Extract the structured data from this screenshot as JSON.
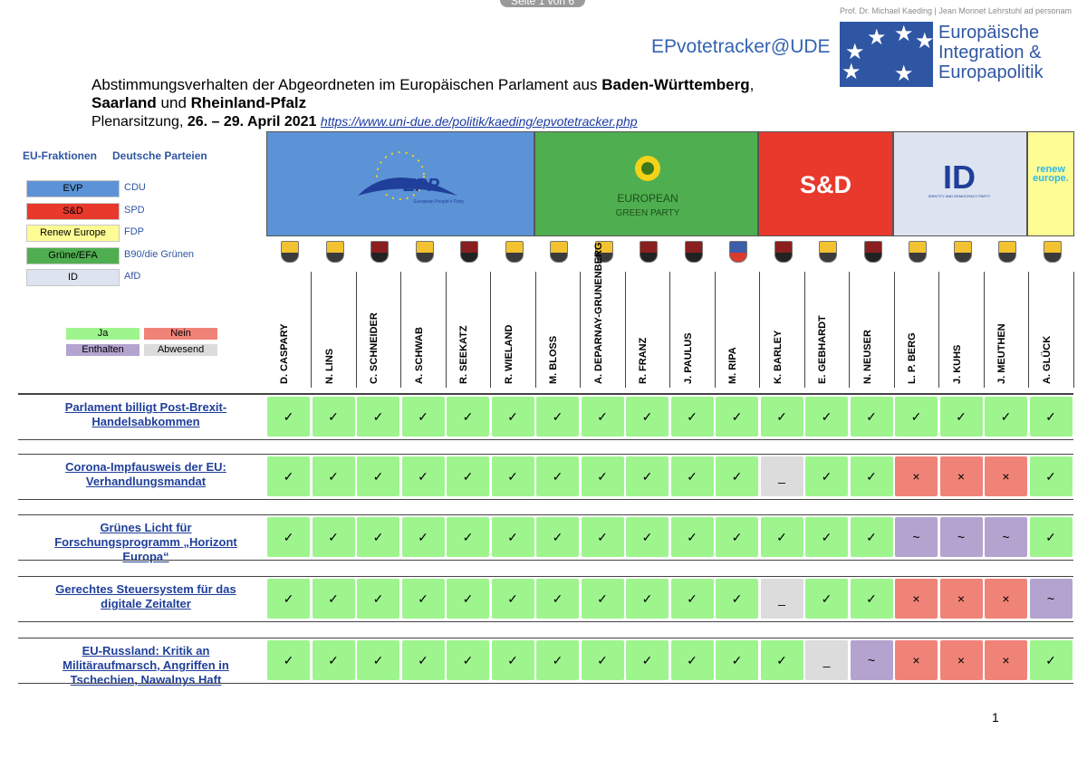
{
  "viewer": {
    "page_indicator": "Seite 1 von 6"
  },
  "header": {
    "brand": "EPvotetracker@UDE",
    "credit": "Prof. Dr. Michael Kaeding | Jean Monnet Lehrstuhl ad personam",
    "logo_lines": [
      "Europäische",
      "Integration &",
      "Europapolitik"
    ],
    "title_part1": "Abstimmungsverhalten der Abgeordneten im Europäischen Parlament aus ",
    "title_bold1": "Baden-Württemberg",
    "title_part2": ",",
    "title_bold2": "Saarland",
    "title_part3": " und ",
    "title_bold3": "Rheinland-Pfalz",
    "session_label": "Plenarsitzung, ",
    "session_dates": "26. – 29. April 2021",
    "url": "https://www.uni-due.de/politik/kaeding/epvotetracker.php"
  },
  "legend": {
    "head_groups": "EU-Fraktionen",
    "head_parties": "Deutsche Parteien",
    "groups": [
      {
        "group": "EVP",
        "party": "CDU",
        "color": "#5b93d6"
      },
      {
        "group": "S&D",
        "party": "SPD",
        "color": "#e8392c"
      },
      {
        "group": "Renew Europe",
        "party": "FDP",
        "color": "#fefc94"
      },
      {
        "group": "Grüne/EFA",
        "party": "B90/die Grünen",
        "color": "#4fae4f"
      },
      {
        "group": "ID",
        "party": "AfD",
        "color": "#dde3f0"
      }
    ],
    "vote_keys": {
      "yes": "Ja",
      "no": "Nein",
      "abstain": "Enthalten",
      "absent": "Abwesend"
    }
  },
  "party_headers": {
    "epp_text": "EPP",
    "epp_sub": "European People's Party",
    "greens_line1": "EUROPEAN",
    "greens_line2": "GREEN PARTY",
    "sd_text": "S&D",
    "id_text": "ID",
    "id_sub": "IDENTITY AND DEMOCRACY PARTY",
    "renew_text": "renew europe."
  },
  "meps": [
    {
      "name": "D. CASPARY",
      "region": "BW"
    },
    {
      "name": "N. LINS",
      "region": "BW"
    },
    {
      "name": "C. SCHNEIDER",
      "region": "RP"
    },
    {
      "name": "A. SCHWAB",
      "region": "BW"
    },
    {
      "name": "R. SEEKATZ",
      "region": "RP"
    },
    {
      "name": "R. WIELAND",
      "region": "BW"
    },
    {
      "name": "M. BLOSS",
      "region": "BW"
    },
    {
      "name": "A. DEPARNAY-GRUNENBERG",
      "region": "BW"
    },
    {
      "name": "R. FRANZ",
      "region": "RP"
    },
    {
      "name": "J. PAULUS",
      "region": "RP"
    },
    {
      "name": "M. RIPA",
      "region": "SL"
    },
    {
      "name": "K. BARLEY",
      "region": "RP"
    },
    {
      "name": "E. GEBHARDT",
      "region": "BW"
    },
    {
      "name": "N. NEUSER",
      "region": "RP"
    },
    {
      "name": "L. P. BERG",
      "region": "BW"
    },
    {
      "name": "J. KUHS",
      "region": "BW"
    },
    {
      "name": "J. MEUTHEN",
      "region": "BW"
    },
    {
      "name": "A. GLÜCK",
      "region": "BW"
    }
  ],
  "symbols": {
    "Y": "✓",
    "N": "×",
    "E": "~",
    "A": "_"
  },
  "colors": {
    "Y": "#9ef58e",
    "N": "#f08378",
    "E": "#b4a3cf",
    "A": "#dcdcdc"
  },
  "votes": [
    {
      "title": "Parlament billigt Post-Brexit-Handelsabkommen",
      "results": [
        "Y",
        "Y",
        "Y",
        "Y",
        "Y",
        "Y",
        "Y",
        "Y",
        "Y",
        "Y",
        "Y",
        "Y",
        "Y",
        "Y",
        "Y",
        "Y",
        "Y",
        "Y"
      ]
    },
    {
      "title": "Corona-Impfausweis der EU: Verhandlungsmandat",
      "results": [
        "Y",
        "Y",
        "Y",
        "Y",
        "Y",
        "Y",
        "Y",
        "Y",
        "Y",
        "Y",
        "Y",
        "A",
        "Y",
        "Y",
        "N",
        "N",
        "N",
        "Y"
      ]
    },
    {
      "title": "Grünes Licht für Forschungsprogramm „Horizont Europa“",
      "results": [
        "Y",
        "Y",
        "Y",
        "Y",
        "Y",
        "Y",
        "Y",
        "Y",
        "Y",
        "Y",
        "Y",
        "Y",
        "Y",
        "Y",
        "E",
        "E",
        "E",
        "Y"
      ]
    },
    {
      "title": "Gerechtes Steuersystem für das digitale Zeitalter",
      "results": [
        "Y",
        "Y",
        "Y",
        "Y",
        "Y",
        "Y",
        "Y",
        "Y",
        "Y",
        "Y",
        "Y",
        "A",
        "Y",
        "Y",
        "N",
        "N",
        "N",
        "E"
      ]
    },
    {
      "title": "EU-Russland: Kritik an Militäraufmarsch, Angriffen in Tschechien, Nawalnys Haft",
      "results": [
        "Y",
        "Y",
        "Y",
        "Y",
        "Y",
        "Y",
        "Y",
        "Y",
        "Y",
        "Y",
        "Y",
        "Y",
        "A",
        "E",
        "N",
        "N",
        "N",
        "Y"
      ]
    }
  ],
  "page_number": "1"
}
